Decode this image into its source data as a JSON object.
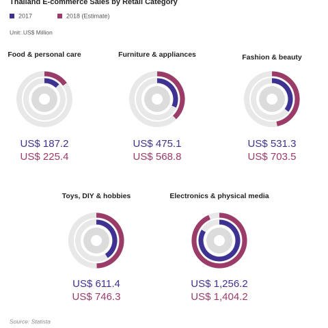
{
  "header": {
    "title": "Thailand E-commerce Sales by Retail Category",
    "unit": "Unit: US$ Million",
    "source": "Source: Statista"
  },
  "chart_data": [
    {
      "type": "radial-bar",
      "title": "Food & personal care",
      "rlim": [
        0,
        1500
      ],
      "series": [
        {
          "name": "2017",
          "color": "#3d3192",
          "values": [
            187.2
          ],
          "value_labels": [
            "US$ 187.2"
          ]
        },
        {
          "name": "2018 (Estimate)",
          "color": "#9b3b67",
          "values": [
            225.4
          ],
          "value_labels": [
            "US$ 225.4"
          ]
        }
      ]
    },
    {
      "type": "radial-bar",
      "title": "Furniture & appliances",
      "rlim": [
        0,
        1500
      ],
      "series": [
        {
          "name": "2017",
          "color": "#3d3192",
          "values": [
            475.1
          ],
          "value_labels": [
            "US$ 475.1"
          ]
        },
        {
          "name": "2018 (Estimate)",
          "color": "#9b3b67",
          "values": [
            568.8
          ],
          "value_labels": [
            "US$ 568.8"
          ]
        }
      ]
    },
    {
      "type": "radial-bar",
      "title": "Fashion & beauty",
      "rlim": [
        0,
        1500
      ],
      "series": [
        {
          "name": "2017",
          "color": "#3d3192",
          "values": [
            531.3
          ],
          "value_labels": [
            "US$ 531.3"
          ]
        },
        {
          "name": "2018 (Estimate)",
          "color": "#9b3b67",
          "values": [
            703.5
          ],
          "value_labels": [
            "US$ 703.5"
          ]
        }
      ]
    },
    {
      "type": "radial-bar",
      "title": "Toys, DIY & hobbies",
      "rlim": [
        0,
        1500
      ],
      "series": [
        {
          "name": "2017",
          "color": "#3d3192",
          "values": [
            611.4
          ],
          "value_labels": [
            "US$ 611.4"
          ]
        },
        {
          "name": "2018 (Estimate)",
          "color": "#9b3b67",
          "values": [
            746.3
          ],
          "value_labels": [
            "US$ 746.3"
          ]
        }
      ]
    },
    {
      "type": "radial-bar",
      "title": "Electronics & physical media",
      "rlim": [
        0,
        1500
      ],
      "series": [
        {
          "name": "2017",
          "color": "#3d3192",
          "values": [
            1256.2
          ],
          "value_labels": [
            "US$ 1,256.2"
          ]
        },
        {
          "name": "2018 (Estimate)",
          "color": "#9b3b67",
          "values": [
            1404.2
          ],
          "value_labels": [
            "US$ 1,404.2"
          ]
        }
      ]
    }
  ]
}
